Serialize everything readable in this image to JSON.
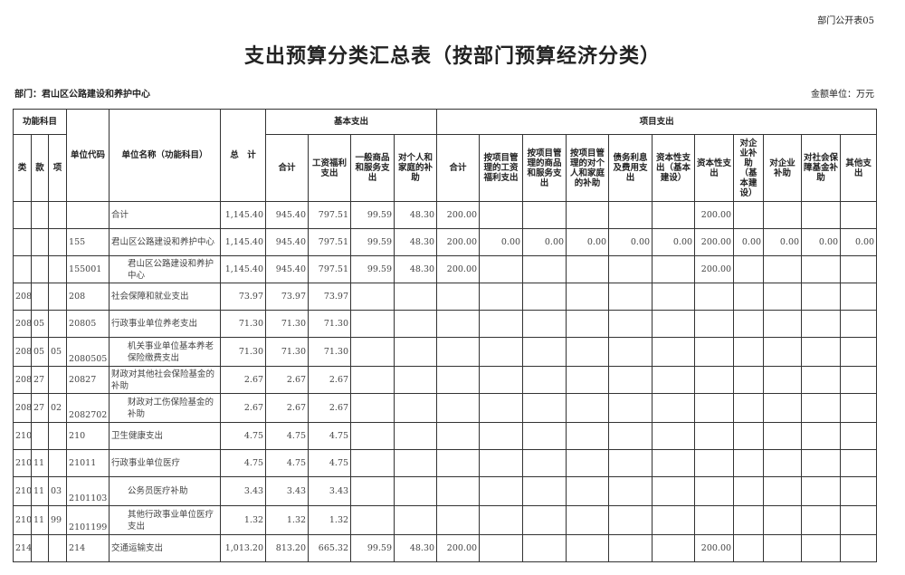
{
  "corner_label": "部门公开表05",
  "title": "支出预算分类汇总表（按部门预算经济分类）",
  "department": "部门：君山区公路建设和养护中心",
  "unit": "金额单位：万元",
  "headers": {
    "func_subject": "功能科目",
    "lei": "类",
    "kuan": "款",
    "xiang": "项",
    "unit_code": "单位代码",
    "unit_name": "单位名称（功能科目）",
    "total": "总　计",
    "basic": "基本支出",
    "basic_cols": [
      "合计",
      "工资福利支出",
      "一般商品和服务支出",
      "对个人和家庭的补助"
    ],
    "project": "项目支出",
    "project_cols": [
      "合计",
      "按项目管理的工资福利支出",
      "按项目管理的商品和服务支出",
      "按项目管理的对个人和家庭的补助",
      "债务利息及费用支出",
      "资本性支出（基本建设）",
      "资本性支出",
      "对企业补助（基本建设）",
      "对企业补助",
      "对社会保障基金补助",
      "其他支出"
    ]
  },
  "rows": [
    {
      "level": 0,
      "cells": [
        "",
        "",
        "",
        "",
        "合计",
        "1,145.40",
        "945.40",
        "797.51",
        "99.59",
        "48.30",
        "200.00",
        "",
        "",
        "",
        "",
        "",
        "200.00",
        "",
        "",
        "",
        ""
      ]
    },
    {
      "level": 0,
      "cells": [
        "",
        "",
        "",
        "155",
        "君山区公路建设和养护中心",
        "1,145.40",
        "945.40",
        "797.51",
        "99.59",
        "48.30",
        "200.00",
        "0.00",
        "0.00",
        "0.00",
        "0.00",
        "0.00",
        "200.00",
        "0.00",
        "0.00",
        "0.00",
        "0.00"
      ]
    },
    {
      "level": 1,
      "cells": [
        "",
        "",
        "",
        "155001",
        "君山区公路建设和养护中心",
        "1,145.40",
        "945.40",
        "797.51",
        "99.59",
        "48.30",
        "200.00",
        "",
        "",
        "",
        "",
        "",
        "200.00",
        "",
        "",
        "",
        ""
      ]
    },
    {
      "level": 0,
      "cells": [
        "208",
        "",
        "",
        "208",
        "社会保障和就业支出",
        "73.97",
        "73.97",
        "73.97",
        "",
        "",
        "",
        "",
        "",
        "",
        "",
        "",
        "",
        "",
        "",
        "",
        ""
      ]
    },
    {
      "level": 0,
      "cells": [
        "208",
        "05",
        "",
        "20805",
        "行政事业单位养老支出",
        "71.30",
        "71.30",
        "71.30",
        "",
        "",
        "",
        "",
        "",
        "",
        "",
        "",
        "",
        "",
        "",
        "",
        ""
      ]
    },
    {
      "level": 2,
      "cells": [
        "208",
        "05",
        "05",
        "2080505",
        "机关事业单位基本养老保险缴费支出",
        "71.30",
        "71.30",
        "71.30",
        "",
        "",
        "",
        "",
        "",
        "",
        "",
        "",
        "",
        "",
        "",
        "",
        ""
      ]
    },
    {
      "level": 0,
      "cells": [
        "208",
        "27",
        "",
        "20827",
        "财政对其他社会保险基金的补助",
        "2.67",
        "2.67",
        "2.67",
        "",
        "",
        "",
        "",
        "",
        "",
        "",
        "",
        "",
        "",
        "",
        "",
        ""
      ]
    },
    {
      "level": 2,
      "cells": [
        "208",
        "27",
        "02",
        "2082702",
        "财政对工伤保险基金的补助",
        "2.67",
        "2.67",
        "2.67",
        "",
        "",
        "",
        "",
        "",
        "",
        "",
        "",
        "",
        "",
        "",
        "",
        ""
      ]
    },
    {
      "level": 0,
      "cells": [
        "210",
        "",
        "",
        "210",
        "卫生健康支出",
        "4.75",
        "4.75",
        "4.75",
        "",
        "",
        "",
        "",
        "",
        "",
        "",
        "",
        "",
        "",
        "",
        "",
        ""
      ]
    },
    {
      "level": 0,
      "cells": [
        "210",
        "11",
        "",
        "21011",
        "行政事业单位医疗",
        "4.75",
        "4.75",
        "4.75",
        "",
        "",
        "",
        "",
        "",
        "",
        "",
        "",
        "",
        "",
        "",
        "",
        ""
      ]
    },
    {
      "level": 2,
      "cells": [
        "210",
        "11",
        "03",
        "2101103",
        "公务员医疗补助",
        "3.43",
        "3.43",
        "3.43",
        "",
        "",
        "",
        "",
        "",
        "",
        "",
        "",
        "",
        "",
        "",
        "",
        ""
      ]
    },
    {
      "level": 2,
      "cells": [
        "210",
        "11",
        "99",
        "2101199",
        "其他行政事业单位医疗支出",
        "1.32",
        "1.32",
        "1.32",
        "",
        "",
        "",
        "",
        "",
        "",
        "",
        "",
        "",
        "",
        "",
        "",
        ""
      ]
    },
    {
      "level": 0,
      "cells": [
        "214",
        "",
        "",
        "214",
        "交通运输支出",
        "1,013.20",
        "813.20",
        "665.32",
        "99.59",
        "48.30",
        "200.00",
        "",
        "",
        "",
        "",
        "",
        "200.00",
        "",
        "",
        "",
        ""
      ]
    }
  ]
}
